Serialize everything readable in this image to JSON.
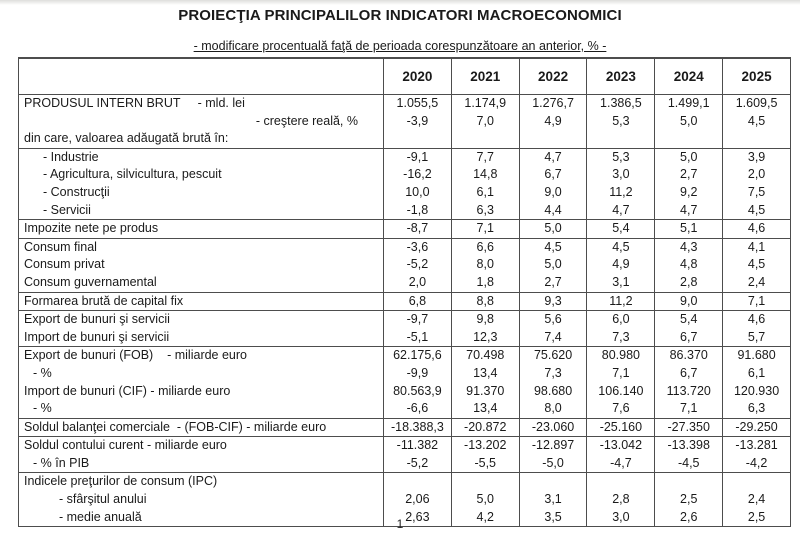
{
  "page": {
    "title": "PROIECŢIA PRINCIPALILOR INDICATORI MACROECONOMICI",
    "subtitle": "- modificare procentuală faţă de perioada corespunzătoare an anterior, % -",
    "page_number": "1"
  },
  "colors": {
    "border": "#4d4d4d",
    "text": "#1a1a1a",
    "background": "#ffffff"
  },
  "table": {
    "columns": [
      "2020",
      "2021",
      "2022",
      "2023",
      "2024",
      "2025"
    ],
    "rows": [
      {
        "label": "PRODUSUL INTERN BRUT     - mld. lei",
        "style": "plain",
        "section": false,
        "values": [
          "1.055,5",
          "1.174,9",
          "1.276,7",
          "1.386,5",
          "1.499,1",
          "1.609,5"
        ]
      },
      {
        "label": "- creştere reală, %",
        "style": "right",
        "section": false,
        "values": [
          "-3,9",
          "7,0",
          "4,9",
          "5,3",
          "5,0",
          "4,5"
        ]
      },
      {
        "label": "din care, valoarea adăugată brută în:",
        "style": "plain",
        "section": false,
        "values": [
          "",
          "",
          "",
          "",
          "",
          ""
        ]
      },
      {
        "label": "- Industrie",
        "style": "indent1",
        "section": true,
        "values": [
          "-9,1",
          "7,7",
          "4,7",
          "5,3",
          "5,0",
          "3,9"
        ]
      },
      {
        "label": "- Agricultura, silvicultura, pescuit",
        "style": "indent1",
        "section": false,
        "values": [
          "-16,2",
          "14,8",
          "6,7",
          "3,0",
          "2,7",
          "2,0"
        ]
      },
      {
        "label": "- Construcţii",
        "style": "indent1",
        "section": false,
        "values": [
          "10,0",
          "6,1",
          "9,0",
          "11,2",
          "9,2",
          "7,5"
        ]
      },
      {
        "label": "- Servicii",
        "style": "indent1",
        "section": false,
        "values": [
          "-1,8",
          "6,3",
          "4,4",
          "4,7",
          "4,7",
          "4,5"
        ]
      },
      {
        "label": "Impozite nete pe produs",
        "style": "plain",
        "section": true,
        "values": [
          "-8,7",
          "7,1",
          "5,0",
          "5,4",
          "5,1",
          "4,6"
        ]
      },
      {
        "label": "Consum final",
        "style": "plain",
        "section": true,
        "values": [
          "-3,6",
          "6,6",
          "4,5",
          "4,5",
          "4,3",
          "4,1"
        ]
      },
      {
        "label": "Consum privat",
        "style": "plain",
        "section": false,
        "values": [
          "-5,2",
          "8,0",
          "5,0",
          "4,9",
          "4,8",
          "4,5"
        ]
      },
      {
        "label": "Consum guvernamental",
        "style": "plain",
        "section": false,
        "values": [
          "2,0",
          "1,8",
          "2,7",
          "3,1",
          "2,8",
          "2,4"
        ]
      },
      {
        "label": "Formarea brută de capital fix",
        "style": "plain",
        "section": true,
        "values": [
          "6,8",
          "8,8",
          "9,3",
          "11,2",
          "9,0",
          "7,1"
        ]
      },
      {
        "label": "Export de bunuri şi servicii",
        "style": "plain",
        "section": true,
        "values": [
          "-9,7",
          "9,8",
          "5,6",
          "6,0",
          "5,4",
          "4,6"
        ]
      },
      {
        "label": "Import de bunuri şi servicii",
        "style": "plain",
        "section": false,
        "values": [
          "-5,1",
          "12,3",
          "7,4",
          "7,3",
          "6,7",
          "5,7"
        ]
      },
      {
        "label": "Export de bunuri (FOB)    - miliarde euro",
        "style": "plain",
        "section": true,
        "values": [
          "62.175,6",
          "70.498",
          "75.620",
          "80.980",
          "86.370",
          "91.680"
        ]
      },
      {
        "label": "- %",
        "style": "indent-sm",
        "section": false,
        "values": [
          "-9,9",
          "13,4",
          "7,3",
          "7,1",
          "6,7",
          "6,1"
        ]
      },
      {
        "label": "Import de bunuri (CIF) - miliarde euro",
        "style": "plain",
        "section": false,
        "values": [
          "80.563,9",
          "91.370",
          "98.680",
          "106.140",
          "113.720",
          "120.930"
        ]
      },
      {
        "label": "- %",
        "style": "indent-sm",
        "section": false,
        "values": [
          "-6,6",
          "13,4",
          "8,0",
          "7,6",
          "7,1",
          "6,3"
        ]
      },
      {
        "label": "Soldul balanţei comerciale  - (FOB-CIF) - miliarde euro",
        "style": "plain",
        "section": true,
        "values": [
          "-18.388,3",
          "-20.872",
          "-23.060",
          "-25.160",
          "-27.350",
          "-29.250"
        ]
      },
      {
        "label": "Soldul contului curent - miliarde euro",
        "style": "plain",
        "section": true,
        "values": [
          "-11.382",
          "-13.202",
          "-12.897",
          "-13.042",
          "-13.398",
          "-13.281"
        ]
      },
      {
        "label": "- % în PIB",
        "style": "indent-sm",
        "section": false,
        "values": [
          "-5,2",
          "-5,5",
          "-5,0",
          "-4,7",
          "-4,5",
          "-4,2"
        ]
      },
      {
        "label": "Indicele preţurilor de consum (IPC)",
        "style": "plain",
        "section": true,
        "values": [
          "",
          "",
          "",
          "",
          "",
          ""
        ]
      },
      {
        "label": "- sfârşitul anului",
        "style": "indent2",
        "section": false,
        "values": [
          "2,06",
          "5,0",
          "3,1",
          "2,8",
          "2,5",
          "2,4"
        ]
      },
      {
        "label": "- medie anuală",
        "style": "indent2",
        "section": false,
        "values": [
          "2,63",
          "4,2",
          "3,5",
          "3,0",
          "2,6",
          "2,5"
        ]
      }
    ]
  }
}
